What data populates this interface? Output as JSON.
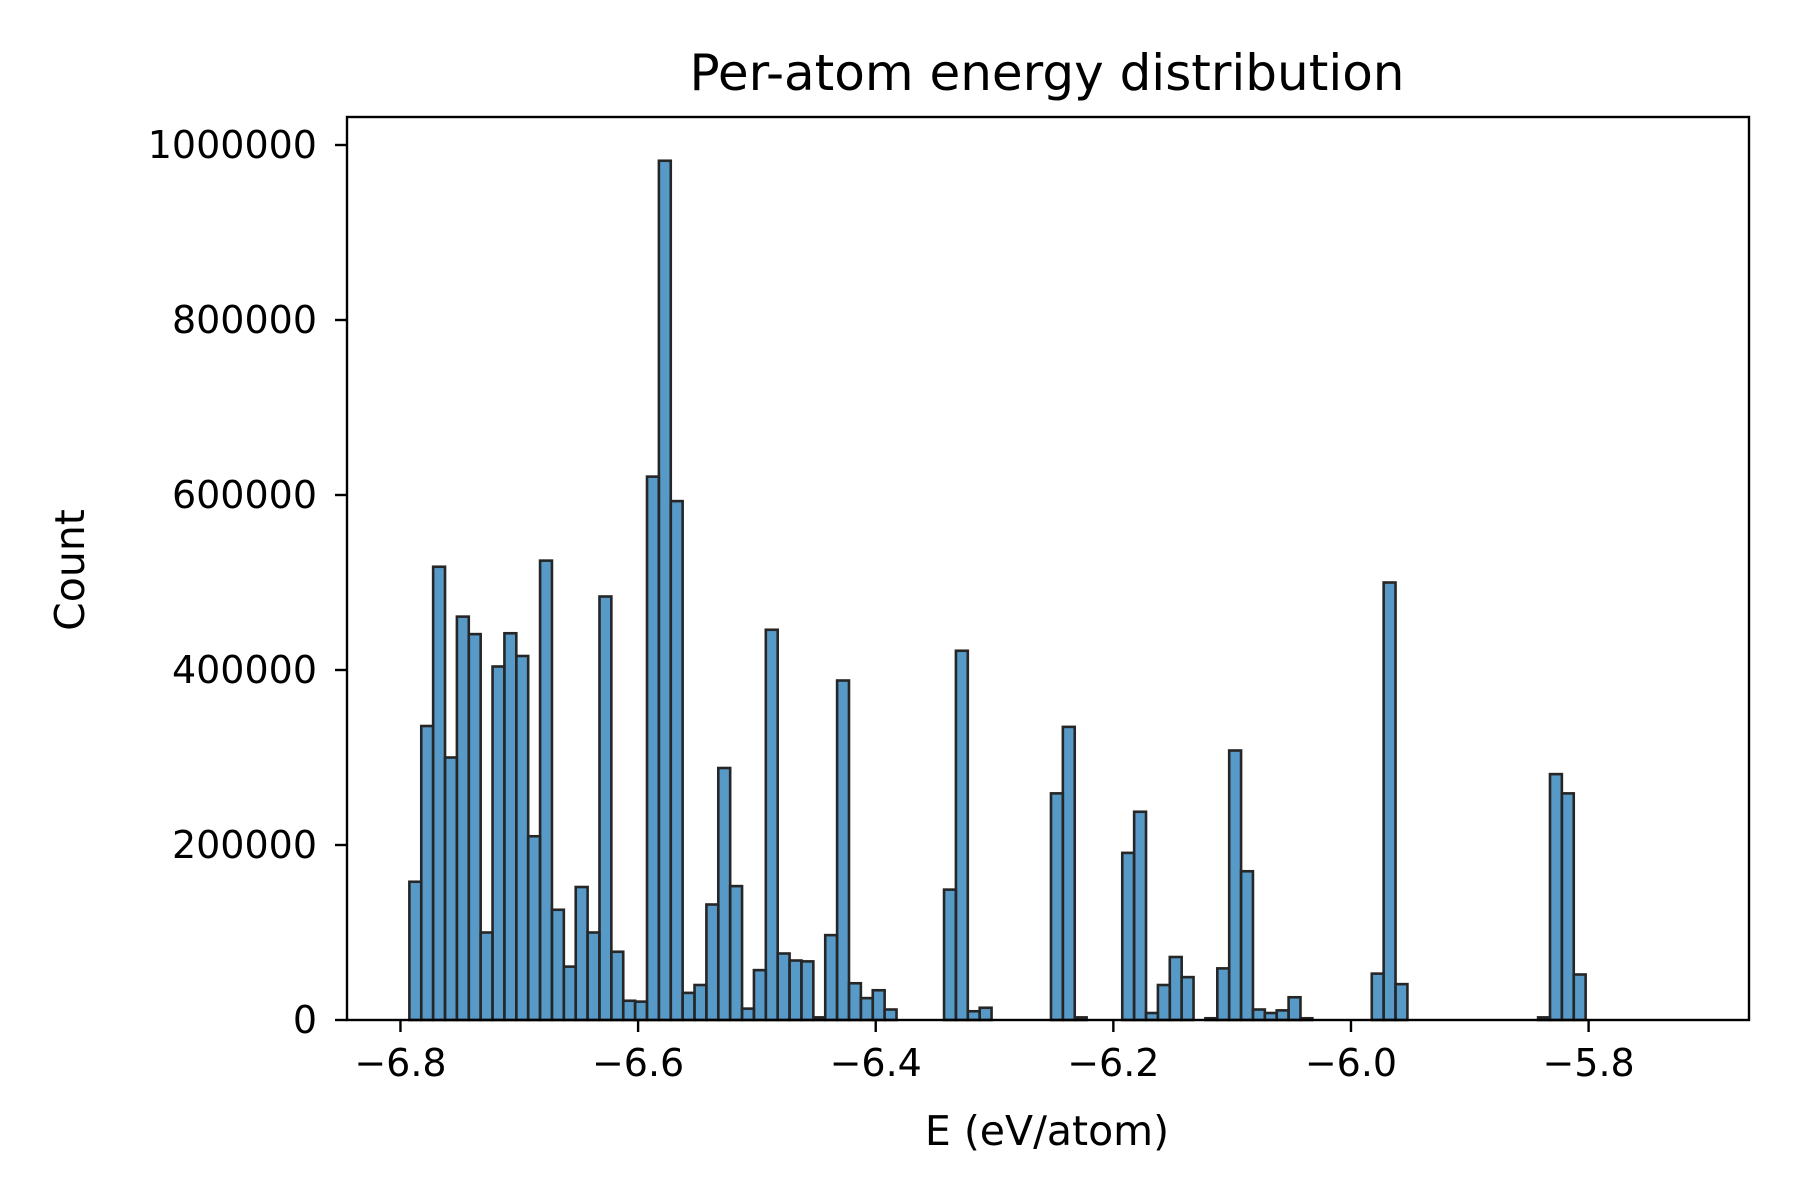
{
  "chart_data": {
    "type": "bar",
    "title": "Per-atom energy distribution",
    "xlabel": "E (eV/atom)",
    "ylabel": "Count",
    "xlim": [
      -6.845,
      -5.665
    ],
    "ylim": [
      0,
      1032000
    ],
    "xticks": [
      -6.8,
      -6.6,
      -6.4,
      -6.2,
      -6.0,
      -5.8
    ],
    "xtick_labels": [
      "−6.8",
      "−6.6",
      "−6.4",
      "−6.2",
      "−6.0",
      "−5.8"
    ],
    "yticks": [
      0,
      200000,
      400000,
      600000,
      800000,
      1000000
    ],
    "ytick_labels": [
      "0",
      "200000",
      "400000",
      "600000",
      "800000",
      "1000000"
    ],
    "grid": false,
    "bar_color": "#1f77b4",
    "bar_alpha": 0.75,
    "edge_color": "#262626",
    "bin_start": -6.7925,
    "bin_width": 0.01,
    "counts": [
      158000,
      336000,
      518000,
      300000,
      461000,
      441000,
      100000,
      404000,
      442000,
      416000,
      210000,
      525000,
      126000,
      61000,
      152000,
      100000,
      484000,
      78000,
      22000,
      21000,
      621000,
      982000,
      593000,
      31000,
      40000,
      132000,
      288000,
      153000,
      13000,
      57000,
      446000,
      76000,
      68000,
      67000,
      3000,
      97000,
      388000,
      42000,
      25000,
      34000,
      12000,
      0,
      0,
      0,
      0,
      149000,
      422000,
      10000,
      14000,
      0,
      0,
      0,
      0,
      0,
      259000,
      335000,
      3000,
      0,
      0,
      0,
      191000,
      238000,
      8000,
      40000,
      72000,
      49000,
      0,
      2000,
      59000,
      308000,
      170000,
      12000,
      8000,
      11000,
      26000,
      2000,
      0,
      0,
      0,
      0,
      0,
      53000,
      500000,
      41000,
      0,
      0,
      0,
      0,
      0,
      0,
      0,
      0,
      0,
      0,
      0,
      3000,
      281000,
      259000,
      52000,
      0,
      0,
      0,
      0,
      0,
      0,
      0,
      0,
      0,
      0,
      0,
      0,
      0,
      0,
      0,
      0,
      0,
      0,
      0,
      0,
      0,
      0,
      0,
      0,
      0,
      0,
      0,
      0,
      0,
      0,
      0,
      0,
      0,
      0,
      0,
      0,
      0,
      0,
      0,
      0,
      0,
      0,
      0,
      0,
      0,
      0,
      0,
      0,
      0,
      0,
      0,
      0,
      0,
      0,
      0,
      0,
      0,
      0,
      0,
      0,
      0,
      0,
      0,
      0,
      0,
      0,
      0,
      0,
      0,
      0,
      0,
      0,
      0,
      0,
      0,
      0,
      0,
      0,
      0,
      0,
      0,
      0,
      0,
      0,
      0,
      0,
      0,
      0,
      0,
      0,
      0,
      0,
      0,
      0,
      0,
      0,
      0,
      0,
      0,
      0,
      0,
      0,
      0,
      0,
      0,
      0,
      0,
      0,
      0,
      0,
      0,
      0,
      0,
      0,
      0,
      0,
      0,
      0,
      0,
      0,
      0,
      0,
      0,
      0,
      0,
      0,
      0,
      0,
      0,
      0,
      0
    ]
  }
}
